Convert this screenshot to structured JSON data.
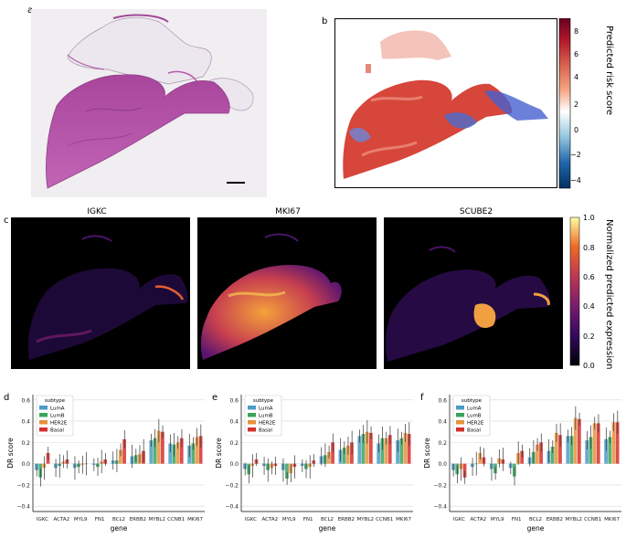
{
  "panel_letters": {
    "a": "a",
    "b": "b",
    "c": "c",
    "d": "d",
    "e": "e",
    "f": "f"
  },
  "risk_colorbar": {
    "label": "Predicted risk score",
    "ticks": [
      "8",
      "6",
      "4",
      "2",
      "0",
      "−2",
      "−4"
    ],
    "colors": [
      "#67001f",
      "#b2182b",
      "#d6604d",
      "#f4a582",
      "#ffffff",
      "#92c5de",
      "#2166ac",
      "#053061"
    ]
  },
  "expression": {
    "titles": [
      "IGKC",
      "MKI67",
      "SCUBE2"
    ],
    "colorbar_label": "Normalized predicted expression",
    "colorbar_ticks": [
      "1.0",
      "0.8",
      "0.6",
      "0.4",
      "0.2",
      "0.0"
    ]
  },
  "chart_data": [
    {
      "type": "bar",
      "panel": "d",
      "legend_title": "subtype",
      "legend_position": "top-left",
      "categories": [
        "IGKC",
        "ACTA2",
        "MYL9",
        "FN1",
        "BCL2",
        "ERBB2",
        "MYBL2",
        "CCNB1",
        "MKI67"
      ],
      "xlabel": "gene",
      "ylabel": "DR score",
      "ylim": [
        -0.45,
        0.65
      ],
      "yticks": [
        "0.6",
        "0.4",
        "0.2",
        "0.0",
        "−0.2",
        "−0.4"
      ],
      "series": [
        {
          "name": "LumA",
          "color": "#4c9bc8",
          "values": [
            -0.06,
            -0.04,
            -0.04,
            -0.01,
            0.03,
            0.07,
            0.22,
            0.19,
            0.17
          ]
        },
        {
          "name": "LumB",
          "color": "#3aa35c",
          "values": [
            -0.13,
            -0.02,
            -0.03,
            -0.03,
            0.03,
            0.08,
            0.24,
            0.18,
            0.19
          ]
        },
        {
          "name": "HER2E",
          "color": "#e8923a",
          "values": [
            -0.04,
            0.02,
            -0.01,
            0.02,
            0.13,
            0.09,
            0.31,
            0.2,
            0.25
          ]
        },
        {
          "name": "Basal",
          "color": "#d3302f",
          "values": [
            0.1,
            0.04,
            0.0,
            0.04,
            0.23,
            0.12,
            0.3,
            0.24,
            0.26
          ]
        }
      ]
    },
    {
      "type": "bar",
      "panel": "e",
      "legend_title": "subtype",
      "legend_position": "top-left",
      "categories": [
        "IGKC",
        "ACTA2",
        "MYL9",
        "FN1",
        "BCL2",
        "ERBB2",
        "MYBL2",
        "CCNB1",
        "MKI67"
      ],
      "xlabel": "gene",
      "ylabel": "DR score",
      "ylim": [
        -0.45,
        0.65
      ],
      "yticks": [
        "0.6",
        "0.4",
        "0.2",
        "0.0",
        "−0.2",
        "−0.4"
      ],
      "series": [
        {
          "name": "LumA",
          "color": "#4c9bc8",
          "values": [
            -0.05,
            -0.02,
            -0.06,
            -0.02,
            0.07,
            0.13,
            0.26,
            0.19,
            0.22
          ]
        },
        {
          "name": "LumB",
          "color": "#3aa35c",
          "values": [
            -0.1,
            -0.06,
            -0.14,
            -0.05,
            0.08,
            0.15,
            0.28,
            0.24,
            0.24
          ]
        },
        {
          "name": "HER2E",
          "color": "#e8923a",
          "values": [
            -0.02,
            -0.04,
            -0.09,
            -0.03,
            0.11,
            0.17,
            0.3,
            0.24,
            0.29
          ]
        },
        {
          "name": "Basal",
          "color": "#d3302f",
          "values": [
            0.04,
            -0.02,
            -0.03,
            0.03,
            0.2,
            0.2,
            0.29,
            0.27,
            0.28
          ]
        }
      ]
    },
    {
      "type": "bar",
      "panel": "f",
      "legend_title": "subtype",
      "legend_position": "top-left",
      "categories": [
        "IGKC",
        "ACTA2",
        "MYL9",
        "FN1",
        "BCL2",
        "ERBB2",
        "MYBL2",
        "CCNB1",
        "MKI67"
      ],
      "xlabel": "gene",
      "ylabel": "DR score",
      "ylim": [
        -0.45,
        0.65
      ],
      "yticks": [
        "0.6",
        "0.4",
        "0.2",
        "0.0",
        "−0.2",
        "−0.4"
      ],
      "series": [
        {
          "name": "LumA",
          "color": "#4c9bc8",
          "values": [
            -0.06,
            -0.03,
            -0.05,
            -0.04,
            0.06,
            0.12,
            0.26,
            0.22,
            0.23
          ]
        },
        {
          "name": "LumB",
          "color": "#3aa35c",
          "values": [
            -0.1,
            0.0,
            -0.09,
            -0.12,
            0.11,
            0.16,
            0.26,
            0.25,
            0.25
          ]
        },
        {
          "name": "HER2E",
          "color": "#e8923a",
          "values": [
            -0.05,
            0.1,
            0.05,
            0.1,
            0.18,
            0.29,
            0.43,
            0.38,
            0.39
          ]
        },
        {
          "name": "Basal",
          "color": "#d3302f",
          "values": [
            -0.13,
            0.06,
            0.04,
            0.12,
            0.2,
            0.27,
            0.42,
            0.38,
            0.39
          ]
        }
      ]
    }
  ]
}
